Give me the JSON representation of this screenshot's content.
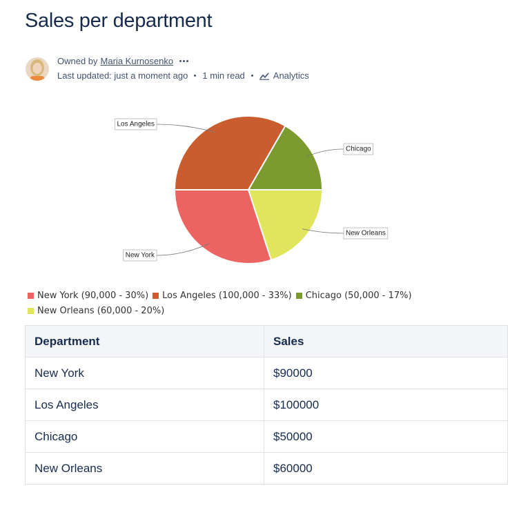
{
  "header": {
    "title": "Sales per department"
  },
  "byline": {
    "owned_by": "Owned by",
    "owner": "Maria Kurnosenko",
    "last_updated": "Last updated: just a moment ago",
    "read_time": "1 min read",
    "analytics": "Analytics"
  },
  "chart_data": {
    "type": "pie",
    "categories": [
      "New York",
      "Los Angeles",
      "Chicago",
      "New Orleans"
    ],
    "values": [
      90000,
      100000,
      50000,
      60000
    ],
    "value_labels": [
      "New York (90,000 - 30%)",
      "Los Angeles (100,000 - 33%)",
      "Chicago (50,000 - 17%)",
      "New Orleans (60,000 - 20%)"
    ],
    "colors": [
      "#ec6461",
      "#c95d2f",
      "#7b9a2f",
      "#e0e55c"
    ]
  },
  "table": {
    "header": [
      "Department",
      "Sales"
    ],
    "rows": [
      [
        "New York",
        "$90000"
      ],
      [
        "Los Angeles",
        "$100000"
      ],
      [
        "Chicago",
        "$50000"
      ],
      [
        "New Orleans",
        "$60000"
      ]
    ]
  }
}
